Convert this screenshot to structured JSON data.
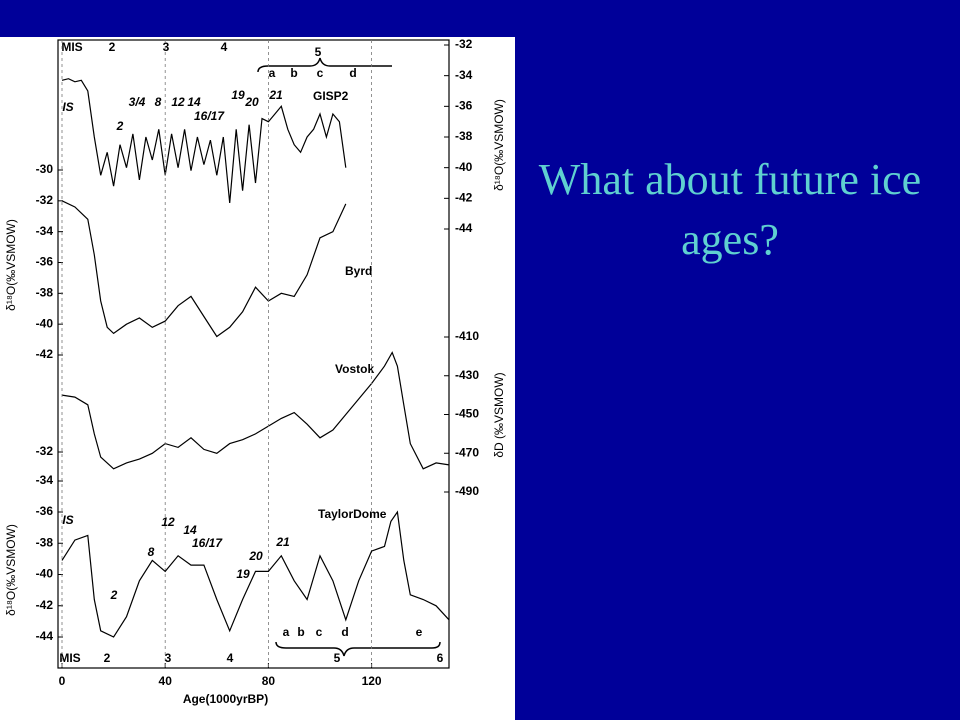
{
  "slide": {
    "title": "What about future ice ages?"
  },
  "chart_data": [
    {
      "type": "line",
      "xlim": [
        0,
        150
      ],
      "x": [
        0,
        2.5,
        5,
        7.5,
        10,
        12.5,
        15,
        17.5,
        20,
        22.5,
        25,
        27.5,
        30,
        32.5,
        35,
        37.5,
        40,
        42.5,
        45,
        47.5,
        50,
        52.5,
        55,
        57.5,
        60,
        62.5,
        65,
        67.5,
        70,
        72.5,
        75,
        77.5,
        80,
        82.5,
        85,
        87.5,
        90,
        92.5,
        95,
        97.5,
        100,
        102.5,
        105,
        107.5,
        110
      ],
      "y2lim": [
        -44,
        -32
      ],
      "y2ticks": [
        -32,
        -34,
        -36,
        -38,
        -40,
        -42,
        -44
      ],
      "y2label": "δ¹⁸O(‰VSMOW)",
      "series": [
        {
          "name": "GISP2",
          "color": "#000000",
          "axis": "y2",
          "values": [
            -34.3,
            -34.2,
            -34.4,
            -34.3,
            -35.0,
            -38.0,
            -40.5,
            -39.0,
            -41.2,
            -38.5,
            -40.0,
            -37.8,
            -40.8,
            -38.0,
            -39.5,
            -37.5,
            -40.5,
            -37.8,
            -40.0,
            -37.5,
            -40.2,
            -38.0,
            -39.8,
            -38.2,
            -40.5,
            -38.0,
            -42.3,
            -37.5,
            -41.5,
            -37.2,
            -41.0,
            -36.8,
            -37.0,
            -36.5,
            -36.0,
            -37.5,
            -38.5,
            -39.0,
            -38.0,
            -37.5,
            -36.5,
            -38.0,
            -36.5,
            -37.0,
            -40.0
          ]
        }
      ],
      "annotations": [
        "MIS",
        "2",
        "3",
        "4",
        "5",
        "a",
        "b",
        "c",
        "d",
        "IS",
        "2",
        "3/4",
        "8",
        "12",
        "14",
        "16/17",
        "19",
        "20",
        "21"
      ]
    },
    {
      "type": "line",
      "xlim": [
        0,
        150
      ],
      "x": [
        0,
        5,
        10,
        12.5,
        15,
        17.5,
        20,
        25,
        30,
        35,
        40,
        45,
        50,
        55,
        60,
        65,
        70,
        75,
        80,
        85,
        90,
        95,
        100,
        105,
        110
      ],
      "ylim": [
        -42,
        -30
      ],
      "yticks": [
        -30,
        -32,
        -34,
        -36,
        -38,
        -40,
        -42
      ],
      "ylabel": "δ¹⁸O(‰VSMOW)",
      "series": [
        {
          "name": "Byrd",
          "color": "#000000",
          "values": [
            -32.0,
            -32.4,
            -33.2,
            -35.5,
            -38.5,
            -40.2,
            -40.6,
            -40.0,
            -39.6,
            -40.2,
            -39.8,
            -38.8,
            -38.2,
            -39.5,
            -40.8,
            -40.2,
            -39.2,
            -37.6,
            -38.5,
            -38.0,
            -38.2,
            -36.8,
            -34.4,
            -34.0,
            -32.2
          ]
        }
      ]
    },
    {
      "type": "line",
      "xlim": [
        0,
        150
      ],
      "x": [
        0,
        5,
        10,
        12.5,
        15,
        20,
        25,
        30,
        35,
        40,
        45,
        50,
        55,
        60,
        65,
        70,
        75,
        80,
        85,
        90,
        95,
        100,
        105,
        110,
        115,
        120,
        125,
        128,
        130,
        132.5,
        135,
        140,
        145,
        150
      ],
      "ylim": [
        -34,
        -32
      ],
      "yticks": [
        -32,
        -34
      ],
      "y2lim": [
        -490,
        -410
      ],
      "y2ticks": [
        -410,
        -430,
        -450,
        -470,
        -490
      ],
      "y2label": "δD (‰VSMOW)",
      "series": [
        {
          "name": "Vostok",
          "color": "#000000",
          "axis": "y2",
          "values": [
            -440,
            -441,
            -445,
            -460,
            -472,
            -478,
            -475,
            -473,
            -470,
            -465,
            -467,
            -462,
            -468,
            -470,
            -465,
            -463,
            -460,
            -456,
            -452,
            -449,
            -455,
            -462,
            -458,
            -450,
            -442,
            -434,
            -425,
            -418,
            -425,
            -445,
            -465,
            -478,
            -475,
            -476
          ]
        }
      ]
    },
    {
      "type": "line",
      "xlim": [
        0,
        150
      ],
      "xticks": [
        0,
        40,
        80,
        120
      ],
      "xlabel": "Age(1000yrBP)",
      "xgrid": true,
      "x": [
        0,
        5,
        10,
        12.5,
        15,
        20,
        25,
        30,
        35,
        40,
        45,
        50,
        55,
        60,
        65,
        70,
        75,
        80,
        85,
        90,
        95,
        100,
        105,
        110,
        115,
        120,
        125,
        127.5,
        130,
        132.5,
        135,
        140,
        145,
        150
      ],
      "ylim": [
        -44,
        -36
      ],
      "yticks": [
        -36,
        -38,
        -40,
        -42,
        -44
      ],
      "ylabel": "δ¹⁸O(‰VSMOW)",
      "series": [
        {
          "name": "TaylorDome",
          "color": "#000000",
          "values": [
            -39.1,
            -37.8,
            -37.5,
            -41.6,
            -43.6,
            -44.0,
            -42.7,
            -40.4,
            -39.1,
            -39.8,
            -38.8,
            -39.4,
            -39.4,
            -41.6,
            -43.6,
            -41.6,
            -39.8,
            -39.8,
            -38.8,
            -40.4,
            -41.6,
            -38.8,
            -40.4,
            -42.9,
            -40.4,
            -38.5,
            -38.2,
            -36.6,
            -36.0,
            -39.1,
            -41.3,
            -41.6,
            -42.0,
            -42.9
          ]
        }
      ],
      "annotations": [
        "IS",
        "2",
        "8",
        "12",
        "14",
        "16/17",
        "19",
        "20",
        "21",
        "a",
        "b",
        "c",
        "d",
        "e",
        "MIS",
        "2",
        "3",
        "4",
        "5",
        "6"
      ]
    }
  ]
}
